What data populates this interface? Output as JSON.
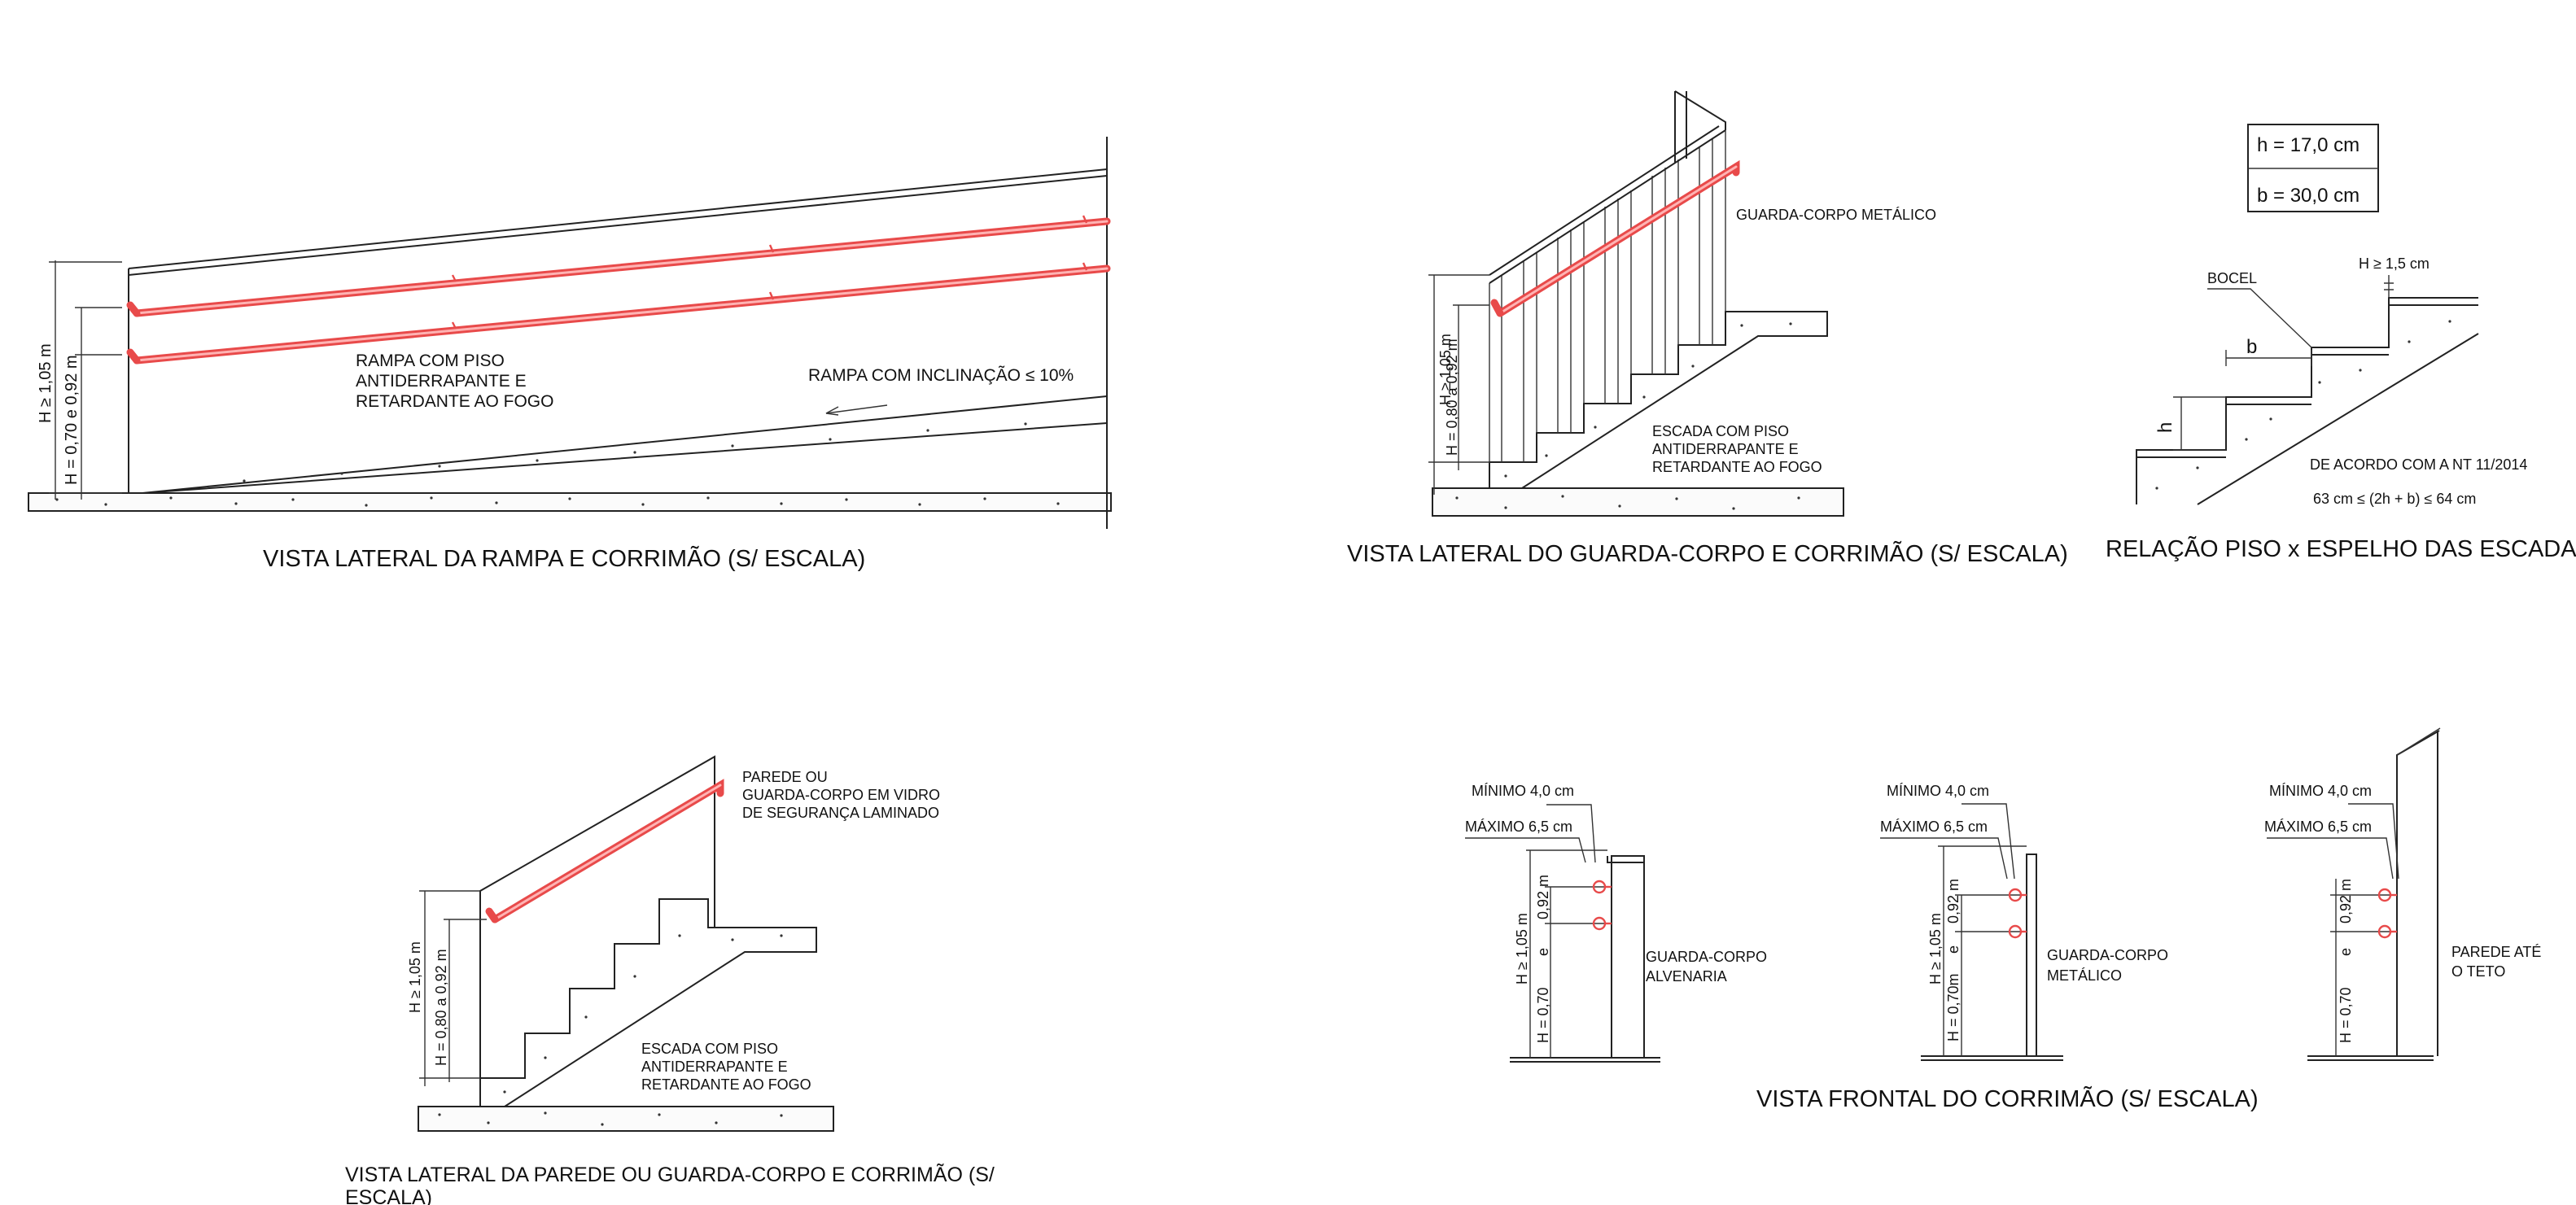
{
  "views": {
    "ramp": {
      "title": "VISTA LATERAL DA RAMPA E CORRIMÃO (S/ ESCALA)",
      "floor_note": [
        "RAMPA COM PISO",
        "ANTIDERRAPANTE E",
        "RETARDANTE AO FOGO"
      ],
      "slope_note": "RAMPA COM INCLINAÇÃO ≤ 10%",
      "dim_total": "H ≥ 1,05 m",
      "dim_rails": "H = 0,70  e  0,92  m"
    },
    "guard_side": {
      "title": "VISTA LATERAL DO GUARDA-CORPO E CORRIMÃO (S/ ESCALA)",
      "guard_note": "GUARDA-CORPO METÁLICO",
      "stair_note": [
        "ESCADA COM PISO",
        "ANTIDERRAPANTE E",
        "RETARDANTE AO FOGO"
      ],
      "dim_total": "H ≥ 1,05 m",
      "dim_rail": "H = 0,80 a 0,92 m"
    },
    "step_ratio": {
      "title": "RELAÇÃO PISO x ESPELHO DAS ESCADAS (S/ ESCALA)",
      "h_value": "h = 17,0 cm",
      "b_value": "b = 30,0 cm",
      "bocel": "BOCEL",
      "nosing": "H ≥ 1,5 cm",
      "b_label": "b",
      "h_label": "h",
      "norm": "DE ACORDO COM A NT 11/2014",
      "formula": "63 cm ≤ (2h + b) ≤ 64 cm"
    },
    "wall_side": {
      "title_lines": [
        "VISTA LATERAL DA PAREDE OU GUARDA-CORPO E CORRIMÃO (S/",
        "ESCALA)"
      ],
      "wall_note": [
        "PAREDE OU",
        "GUARDA-CORPO EM VIDRO",
        "DE SEGURANÇA LAMINADO"
      ],
      "stair_note": [
        "ESCADA COM PISO",
        "ANTIDERRAPANTE E",
        "RETARDANTE AO FOGO"
      ],
      "dim_total": "H ≥ 1,05 m",
      "dim_rail": "H = 0,80 a 0,92 m"
    },
    "front": {
      "title": "VISTA FRONTAL DO CORRIMÃO (S/ ESCALA)",
      "details": [
        {
          "min": "MÍNIMO 4,0 cm",
          "max": "MÁXIMO 6,5 cm",
          "dim_total": "H ≥ 1,05 m",
          "dim_rails": [
            "H = 0,70",
            "e",
            "0,92 m"
          ],
          "label": [
            "GUARDA-CORPO",
            "ALVENARIA"
          ]
        },
        {
          "min": "MÍNIMO 4,0 cm",
          "max": "MÁXIMO 6,5 cm",
          "dim_total": "H ≥ 1,05 m",
          "dim_rails": [
            "H = 0,70m",
            "e",
            "0,92 m"
          ],
          "label": [
            "GUARDA-CORPO",
            "METÁLICO"
          ]
        },
        {
          "min": "MÍNIMO 4,0 cm",
          "max": "MÁXIMO 6,5 cm",
          "dim_rails": [
            "H = 0,70",
            "e",
            "0,92 m"
          ],
          "label": [
            "PAREDE ATÉ",
            "O TETO"
          ]
        }
      ]
    }
  },
  "colors": {
    "handrail": "#e84a4a",
    "line": "#222222"
  }
}
